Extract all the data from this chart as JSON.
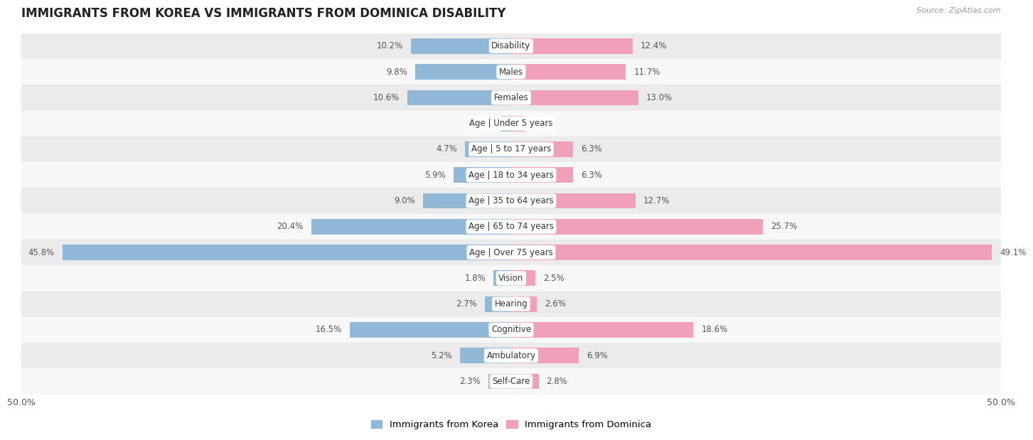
{
  "title": "IMMIGRANTS FROM KOREA VS IMMIGRANTS FROM DOMINICA DISABILITY",
  "source": "Source: ZipAtlas.com",
  "categories": [
    "Disability",
    "Males",
    "Females",
    "Age | Under 5 years",
    "Age | 5 to 17 years",
    "Age | 18 to 34 years",
    "Age | 35 to 64 years",
    "Age | 65 to 74 years",
    "Age | Over 75 years",
    "Vision",
    "Hearing",
    "Cognitive",
    "Ambulatory",
    "Self-Care"
  ],
  "korea_values": [
    10.2,
    9.8,
    10.6,
    1.1,
    4.7,
    5.9,
    9.0,
    20.4,
    45.8,
    1.8,
    2.7,
    16.5,
    5.2,
    2.3
  ],
  "dominica_values": [
    12.4,
    11.7,
    13.0,
    1.4,
    6.3,
    6.3,
    12.7,
    25.7,
    49.1,
    2.5,
    2.6,
    18.6,
    6.9,
    2.8
  ],
  "korea_color": "#92b8d8",
  "dominica_color": "#f0a0b8",
  "axis_max": 50.0,
  "row_bg_light": "#ebebeb",
  "row_bg_white": "#f8f8f8",
  "label_fontsize": 8.5,
  "value_fontsize": 8.5,
  "title_fontsize": 12,
  "bar_height": 0.6
}
